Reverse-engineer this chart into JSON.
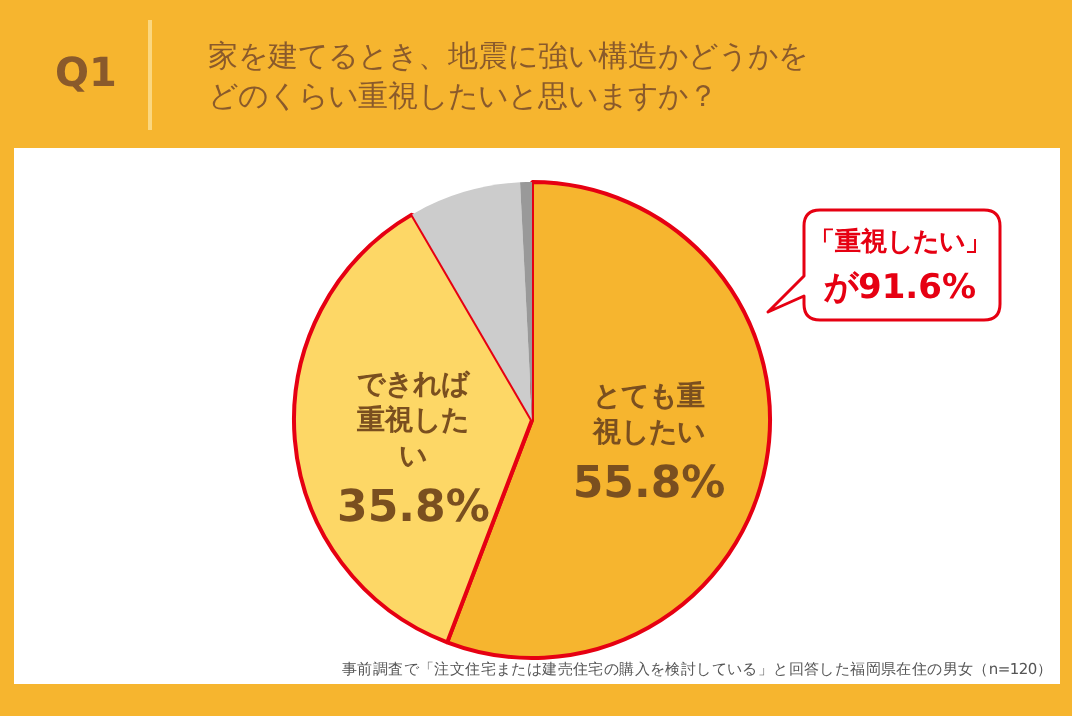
{
  "chart_data": {
    "type": "pie",
    "subtitle": "Q1",
    "title": "家を建てるとき、地震に強い構造かどうかをどのくらい重視したいと思いますか？",
    "categories": [
      "とても重視したい",
      "できれば重視したい",
      null,
      null
    ],
    "values": [
      55.8,
      35.8,
      7.6,
      0.8
    ],
    "colors": [
      "#f6b52f",
      "#fdd766",
      "#cccccc",
      "#999999"
    ],
    "value_labels": [
      "55.8%",
      "35.8%",
      null,
      null
    ],
    "legend": false,
    "annotations": [
      "「重視したい」",
      "が91.6%",
      "事前調査で「注文住宅または建売住宅の購入を検討している」と回答した福岡県在住の男女（n=120）"
    ]
  }
}
